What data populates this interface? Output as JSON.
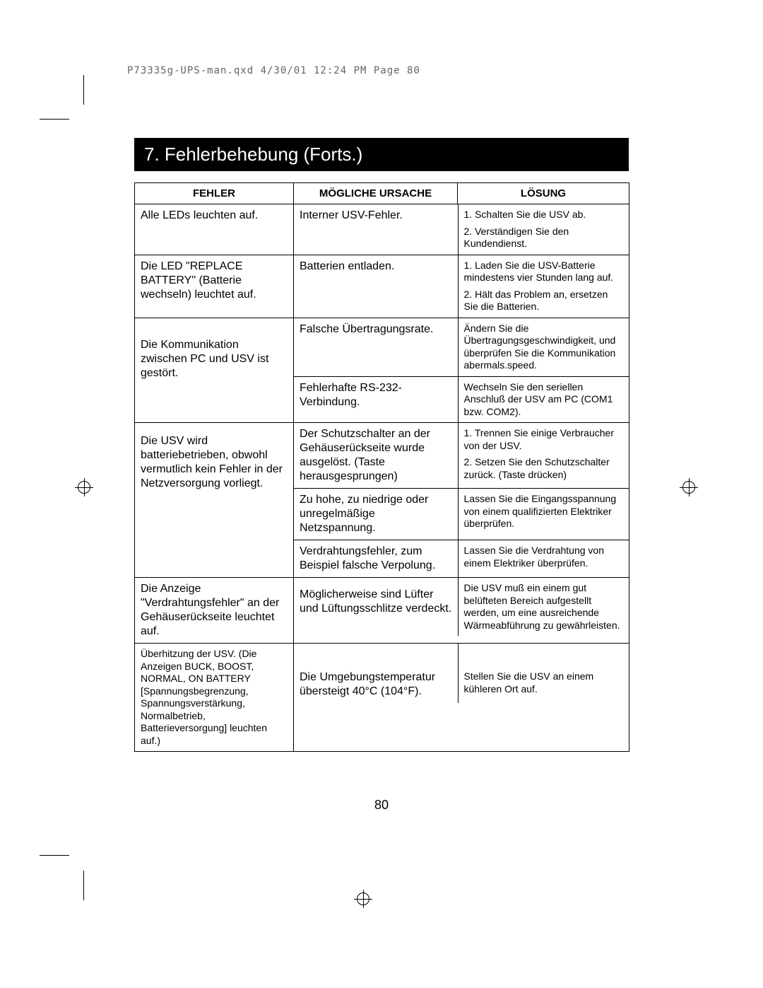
{
  "header_line": "P73335g-UPS-man.qxd   4/30/01  12:24 PM  Page 80",
  "section_title": "7. Fehlerbehebung (Forts.)",
  "page_number": "80",
  "columns": {
    "fehler": "FEHLER",
    "cause": "MÖGLICHE URSACHE",
    "solution": "LÖSUNG"
  },
  "rows": [
    {
      "fehler": "Alle LEDs leuchten auf.",
      "fehler_class": "fehler-text",
      "subrows": [
        {
          "cause": "Interner USV-Fehler.",
          "solutions": [
            "1. Schalten Sie die USV ab.",
            "2. Verständigen Sie den Kundendienst."
          ]
        }
      ]
    },
    {
      "fehler": "Die LED \"REPLACE BATTERY\" (Batterie wechseln) leuchtet auf.",
      "fehler_class": "fehler-text",
      "subrows": [
        {
          "cause": "Batterien entladen.",
          "solutions": [
            "1. Laden Sie die USV-Batterie mindestens vier Stunden lang auf.",
            "2. Hält das Problem an, ersetzen Sie die Batterien."
          ]
        }
      ]
    },
    {
      "fehler": "Die Kommunikation zwischen PC und USV ist gestört.",
      "fehler_class": "fehler-text",
      "fehler_padtop": "28px",
      "subrows": [
        {
          "cause": "Falsche Übertragungsrate.",
          "solutions": [
            "Ändern Sie die Übertragungsgeschwindigkeit, und überprüfen Sie die Kommunikation abermals.speed."
          ]
        },
        {
          "cause": "Fehlerhafte RS-232-Verbindung.",
          "solutions": [
            "Wechseln Sie den seriellen Anschluß der USV am PC (COM1 bzw. COM2)."
          ]
        }
      ]
    },
    {
      "fehler": "Die USV wird batteriebetrieben, obwohl vermutlich kein Fehler in der Netzversorgung vorliegt.",
      "fehler_class": "fehler-text",
      "fehler_padtop": "16px",
      "subrows": [
        {
          "cause": "Der Schutzschalter an der Gehäuserückseite wurde ausgelöst. (Taste herausgesprungen)",
          "solutions": [
            "1. Trennen Sie einige Verbraucher von der USV.",
            "2. Setzen Sie den Schutzschalter zurück. (Taste drücken)"
          ]
        },
        {
          "cause": "Zu hohe, zu niedrige oder unregelmäßige Netzspannung.",
          "solutions": [
            "Lassen Sie die Eingangsspannung von einem qualifizierten Elektriker überprüfen."
          ]
        },
        {
          "cause": "Verdrahtungsfehler, zum Beispiel falsche Verpolung.",
          "solutions": [
            "Lassen Sie die Verdrahtung von einem Elektriker überprüfen."
          ]
        }
      ]
    },
    {
      "fehler": "Die Anzeige \"Verdrahtungsfehler\" an der Gehäuserückseite leuchtet auf.",
      "fehler_class": "fehler-text",
      "subrows": [
        {
          "cause": "Möglicherweise sind Lüfter und Lüftungsschlitze verdeckt.",
          "cause_padtop": "14px",
          "solutions": [
            "Die USV muß ein einem gut belüfteten Bereich aufgestellt werden, um eine ausreichende Wärmeabführung zu gewährleisten."
          ]
        }
      ]
    },
    {
      "fehler": "Überhitzung der USV. (Die Anzeigen BUCK, BOOST, NORMAL, ON BATTERY [Spannungsbegrenzung, Spannungsverstärkung, Normalbetrieb, Batterieversorgung] leuchten auf.)",
      "fehler_class": "small-fehler",
      "subrows": [
        {
          "cause": "Die Umgebungstemperatur übersteigt 40°C (104°F).",
          "cause_padtop": "38px",
          "solutions": [
            "Stellen Sie die USV an einem kühleren Ort auf."
          ],
          "solution_padtop": "38px"
        }
      ]
    }
  ],
  "colors": {
    "background": "#ffffff",
    "text": "#000000",
    "title_bg": "#000000",
    "title_fg": "#ffffff",
    "header_gray": "#666666"
  }
}
